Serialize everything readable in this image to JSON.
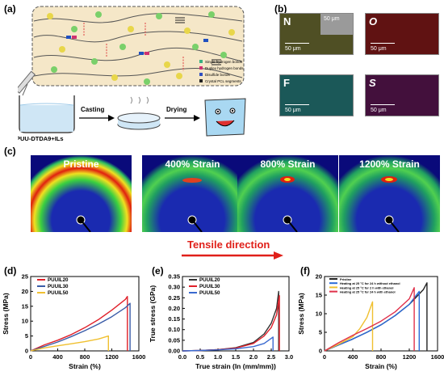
{
  "panels": {
    "a": "(a)",
    "b": "(b)",
    "c": "(c)",
    "d": "(d)",
    "e": "(e)",
    "f": "(f)"
  },
  "panel_a": {
    "legend": [
      "Single hydrogen bonds",
      "Duplex hydrogen bonds",
      "Disulfide bonds",
      "Crystal PCL segments"
    ],
    "beaker_label": "PUU-DTDA9+ILs",
    "step1": "Casting",
    "step2": "Drying"
  },
  "panel_b": {
    "tiles": [
      {
        "element": "N",
        "scale": "50 μm",
        "inset_scale": "50 μm",
        "color": "#5a5a2a"
      },
      {
        "element": "O",
        "scale": "50 μm",
        "color": "#6a1010"
      },
      {
        "element": "F",
        "scale": "50 μm",
        "color": "#1a5a5a"
      },
      {
        "element": "S",
        "scale": "50 μm",
        "color": "#4a1040"
      }
    ]
  },
  "panel_c": {
    "titles": [
      "Pristine",
      "400% Strain",
      "800% Strain",
      "1200% Strain"
    ],
    "direction_label": "Tensile direction",
    "direction_color": "#e0201a"
  },
  "chart_data": [
    {
      "type": "line",
      "xlabel": "Strain (%)",
      "ylabel": "Stress (MPa)",
      "xlim": [
        0,
        1600
      ],
      "ylim": [
        0,
        25
      ],
      "xticks": [
        0,
        400,
        800,
        1200,
        1600
      ],
      "yticks": [
        0,
        5,
        10,
        15,
        20,
        25
      ],
      "legend_placement": "top-left",
      "series": [
        {
          "name": "PUUIL20",
          "color": "#e0202a",
          "x": [
            0,
            200,
            400,
            600,
            800,
            1000,
            1200,
            1400,
            1430,
            1430
          ],
          "y": [
            0,
            2.0,
            3.6,
            5.5,
            7.8,
            10.5,
            13.7,
            17.3,
            18.3,
            0
          ]
        },
        {
          "name": "PUUIL30",
          "color": "#3a5ca8",
          "x": [
            0,
            200,
            400,
            600,
            800,
            1000,
            1200,
            1400,
            1470,
            1470
          ],
          "y": [
            0,
            1.5,
            3.0,
            4.8,
            6.8,
            9.0,
            11.5,
            14.5,
            16.0,
            0
          ]
        },
        {
          "name": "PUUIL50",
          "color": "#f0c030",
          "x": [
            0,
            200,
            400,
            600,
            800,
            1000,
            1150,
            1150
          ],
          "y": [
            0,
            1.0,
            1.7,
            2.4,
            3.1,
            4.0,
            5.0,
            0
          ]
        }
      ]
    },
    {
      "type": "line",
      "xlabel": "True strain (ln (mm/mm))",
      "ylabel": "True stress (GPa)",
      "xlim": [
        0,
        3.0
      ],
      "ylim": [
        0,
        0.35
      ],
      "xticks": [
        0,
        0.5,
        1.0,
        1.5,
        2.0,
        2.5,
        3.0
      ],
      "xtick_labels": [
        "0.0",
        "0.5",
        "1.0",
        "1.5",
        "2.0",
        "2.5",
        "3.0"
      ],
      "yticks": [
        0,
        0.05,
        0.1,
        0.15,
        0.2,
        0.25,
        0.3,
        0.35
      ],
      "ytick_labels": [
        "0.00",
        "0.05",
        "0.10",
        "0.15",
        "0.20",
        "0.25",
        "0.30",
        "0.35"
      ],
      "legend_placement": "top-left",
      "series": [
        {
          "name": "PUUIL20",
          "color": "#333333",
          "x": [
            0,
            0.5,
            1.0,
            1.5,
            2.0,
            2.3,
            2.5,
            2.65,
            2.71,
            2.71
          ],
          "y": [
            0,
            0.002,
            0.006,
            0.015,
            0.04,
            0.08,
            0.13,
            0.2,
            0.28,
            0
          ]
        },
        {
          "name": "PUUIL30",
          "color": "#e0202a",
          "x": [
            0,
            0.5,
            1.0,
            1.5,
            2.0,
            2.3,
            2.5,
            2.65,
            2.73,
            2.73
          ],
          "y": [
            0,
            0.002,
            0.006,
            0.013,
            0.035,
            0.07,
            0.11,
            0.17,
            0.26,
            0
          ]
        },
        {
          "name": "PUUIL50",
          "color": "#3a6ad0",
          "x": [
            0,
            0.5,
            1.0,
            1.5,
            2.0,
            2.3,
            2.55,
            2.55
          ],
          "y": [
            0,
            0.002,
            0.005,
            0.01,
            0.02,
            0.035,
            0.065,
            0
          ]
        }
      ]
    },
    {
      "type": "line",
      "xlabel": "Strain (%)",
      "ylabel": "Stress (MPa)",
      "xlim": [
        0,
        1600
      ],
      "ylim": [
        0,
        20
      ],
      "xticks": [
        0,
        400,
        800,
        1200,
        1600
      ],
      "yticks": [
        0,
        5,
        10,
        15,
        20
      ],
      "legend_placement": "top-left",
      "series": [
        {
          "name": "Pristine",
          "color": "#222222",
          "x": [
            0,
            200,
            400,
            600,
            800,
            1000,
            1200,
            1400,
            1450,
            1450
          ],
          "y": [
            0,
            1.6,
            3.2,
            5.0,
            7.0,
            9.5,
            12.5,
            16.5,
            18.3,
            0
          ]
        },
        {
          "name": "Heating at 25 °C for 24 h without ethanol",
          "color": "#2a6ad8",
          "x": [
            0,
            200,
            400,
            600,
            800,
            1000,
            1200,
            1340,
            1340
          ],
          "y": [
            0,
            1.6,
            3.2,
            5.0,
            7.0,
            9.5,
            12.5,
            16.0,
            0
          ]
        },
        {
          "name": "Heating at 25 °C for 2 h with ethanol",
          "color": "#f0c030",
          "x": [
            0,
            200,
            400,
            500,
            600,
            680,
            680
          ],
          "y": [
            0,
            1.8,
            3.8,
            6.0,
            9.0,
            13.2,
            0
          ]
        },
        {
          "name": "Heating at 25 °C for 24 h with ethanol",
          "color": "#e0304a",
          "x": [
            0,
            200,
            400,
            600,
            800,
            1000,
            1200,
            1270,
            1270
          ],
          "y": [
            0,
            2.2,
            4.2,
            6.0,
            8.0,
            10.5,
            14.0,
            17.0,
            0
          ]
        }
      ]
    }
  ]
}
